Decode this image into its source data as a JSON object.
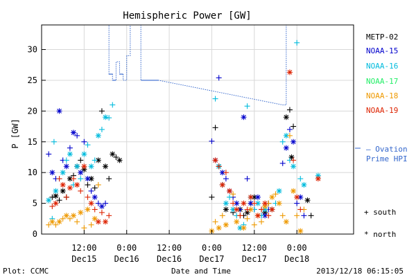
{
  "chart_data": {
    "type": "scatter",
    "title": "Hemispheric Power [GW]",
    "ylabel": "P [GW]",
    "xlabel": "Date and Time",
    "ylim": [
      0,
      34
    ],
    "xlim": [
      0,
      88
    ],
    "yticks": [
      0,
      5,
      10,
      15,
      20,
      25,
      30
    ],
    "xticks": [
      {
        "x": 12,
        "label": "12:00",
        "date": "Dec15"
      },
      {
        "x": 24,
        "label": "0:00",
        "date": "Dec16"
      },
      {
        "x": 36,
        "label": "12:00",
        "date": "Dec16"
      },
      {
        "x": 48,
        "label": "0:00",
        "date": "Dec17"
      },
      {
        "x": 60,
        "label": "12:00",
        "date": "Dec17"
      },
      {
        "x": 72,
        "label": "0:00",
        "date": "Dec18"
      }
    ],
    "grid": true,
    "series": [
      {
        "name": "METP-02",
        "color": "#000000",
        "points": [
          [
            3,
            6,
            "s"
          ],
          [
            4,
            6.2,
            "n"
          ],
          [
            5,
            5.5,
            "s"
          ],
          [
            6,
            7,
            "n"
          ],
          [
            7,
            6,
            "s"
          ],
          [
            8,
            9,
            "n"
          ],
          [
            9,
            9.5,
            "s"
          ],
          [
            10,
            11,
            "n"
          ],
          [
            11,
            12,
            "s"
          ],
          [
            12,
            10.5,
            "n"
          ],
          [
            13,
            8,
            "s"
          ],
          [
            14,
            9,
            "n"
          ],
          [
            15,
            7.5,
            "s"
          ],
          [
            16,
            12,
            "n"
          ],
          [
            17,
            20,
            "s"
          ],
          [
            18,
            11,
            "n"
          ],
          [
            19,
            9,
            "s"
          ],
          [
            20,
            13,
            "n"
          ],
          [
            21,
            12.5,
            "s"
          ],
          [
            22,
            12,
            "n"
          ],
          [
            48,
            6,
            "s"
          ],
          [
            49,
            17.3,
            "s"
          ],
          [
            50,
            11,
            "n"
          ],
          [
            51,
            8,
            "s"
          ],
          [
            52,
            4,
            "n"
          ],
          [
            54,
            3.5,
            "s"
          ],
          [
            56,
            4,
            "n"
          ],
          [
            57,
            3,
            "s"
          ],
          [
            58,
            3.5,
            "n"
          ],
          [
            59,
            5,
            "s"
          ],
          [
            60,
            6,
            "n"
          ],
          [
            62,
            4,
            "s"
          ],
          [
            63,
            3.5,
            "n"
          ],
          [
            64,
            5,
            "s"
          ],
          [
            65,
            4,
            "n"
          ],
          [
            69,
            19,
            "n"
          ],
          [
            70,
            20.2,
            "s"
          ],
          [
            70.5,
            12.5,
            "n"
          ],
          [
            71,
            17.5,
            "s"
          ],
          [
            75,
            5.5,
            "n"
          ],
          [
            76,
            3,
            "s"
          ]
        ]
      },
      {
        "name": "NOAA-15",
        "color": "#0000cc",
        "points": [
          [
            2,
            13,
            "s"
          ],
          [
            3,
            10,
            "n"
          ],
          [
            4,
            9,
            "s"
          ],
          [
            5,
            20,
            "n"
          ],
          [
            6,
            12,
            "s"
          ],
          [
            7,
            11,
            "n"
          ],
          [
            8,
            14,
            "s"
          ],
          [
            9,
            16.5,
            "n"
          ],
          [
            10,
            16,
            "s"
          ],
          [
            11,
            10,
            "n"
          ],
          [
            12,
            15,
            "s"
          ],
          [
            13,
            9,
            "n"
          ],
          [
            14,
            7,
            "s"
          ],
          [
            15,
            6,
            "n"
          ],
          [
            16,
            5,
            "s"
          ],
          [
            17,
            4.5,
            "n"
          ],
          [
            18,
            5,
            "s"
          ],
          [
            48,
            15.1,
            "s"
          ],
          [
            49,
            12,
            "n"
          ],
          [
            50,
            25.4,
            "s"
          ],
          [
            51,
            10,
            "n"
          ],
          [
            52,
            9,
            "s"
          ],
          [
            53,
            7,
            "n"
          ],
          [
            54,
            6,
            "s"
          ],
          [
            55,
            5,
            "n"
          ],
          [
            56,
            4,
            "s"
          ],
          [
            57,
            19,
            "n"
          ],
          [
            58,
            9,
            "s"
          ],
          [
            59,
            5,
            "n"
          ],
          [
            60,
            4,
            "s"
          ],
          [
            61,
            6,
            "n"
          ],
          [
            62,
            3,
            "s"
          ],
          [
            63,
            3,
            "n"
          ],
          [
            64,
            4,
            "s"
          ],
          [
            68,
            11.5,
            "s"
          ],
          [
            69,
            14,
            "n"
          ],
          [
            70,
            17,
            "s"
          ],
          [
            71,
            15,
            "n"
          ],
          [
            72,
            5,
            "s"
          ],
          [
            73,
            6,
            "n"
          ],
          [
            74,
            3,
            "s"
          ]
        ]
      },
      {
        "name": "NOAA-16",
        "color": "#00bbdd",
        "points": [
          [
            2,
            5.5,
            "n"
          ],
          [
            3,
            2.5,
            "s"
          ],
          [
            3.5,
            15,
            "s"
          ],
          [
            4,
            7,
            "n"
          ],
          [
            5,
            9,
            "s"
          ],
          [
            6,
            10,
            "n"
          ],
          [
            7,
            12,
            "s"
          ],
          [
            8,
            13,
            "n"
          ],
          [
            9,
            8,
            "s"
          ],
          [
            10,
            11,
            "n"
          ],
          [
            11,
            9,
            "s"
          ],
          [
            12,
            13,
            "n"
          ],
          [
            13,
            14.5,
            "s"
          ],
          [
            14,
            11,
            "n"
          ],
          [
            15,
            12,
            "s"
          ],
          [
            16,
            16,
            "n"
          ],
          [
            17,
            17,
            "s"
          ],
          [
            18,
            19,
            "n"
          ],
          [
            19,
            18.9,
            "s"
          ],
          [
            20,
            21,
            "s"
          ],
          [
            49,
            22,
            "s"
          ],
          [
            50,
            11,
            "n"
          ],
          [
            51,
            8,
            "s"
          ],
          [
            52,
            5,
            "n"
          ],
          [
            53,
            6,
            "s"
          ],
          [
            54,
            4,
            "n"
          ],
          [
            55,
            3,
            "s"
          ],
          [
            56,
            1,
            "n"
          ],
          [
            57,
            1.5,
            "s"
          ],
          [
            58,
            20.8,
            "s"
          ],
          [
            59,
            6,
            "n"
          ],
          [
            60,
            4,
            "s"
          ],
          [
            61,
            5,
            "n"
          ],
          [
            62,
            3,
            "s"
          ],
          [
            63,
            4,
            "n"
          ],
          [
            66,
            5,
            "s"
          ],
          [
            67,
            7,
            "n"
          ],
          [
            68,
            15,
            "s"
          ],
          [
            69,
            16,
            "n"
          ],
          [
            70,
            12,
            "s"
          ],
          [
            71,
            11,
            "n"
          ],
          [
            72,
            31.1,
            "s"
          ],
          [
            73,
            9,
            "s"
          ],
          [
            74,
            8,
            "n"
          ],
          [
            78,
            9.5,
            "n"
          ]
        ]
      },
      {
        "name": "NOAA-17",
        "color": "#22ee66",
        "points": []
      },
      {
        "name": "NOAA-18",
        "color": "#ee9900",
        "points": [
          [
            2,
            1.5,
            "s"
          ],
          [
            3,
            2,
            "n"
          ],
          [
            4,
            1.5,
            "s"
          ],
          [
            5,
            2,
            "n"
          ],
          [
            6,
            2.5,
            "s"
          ],
          [
            7,
            3,
            "n"
          ],
          [
            8,
            2.5,
            "s"
          ],
          [
            9,
            3,
            "n"
          ],
          [
            10,
            2,
            "s"
          ],
          [
            11,
            3.5,
            "n"
          ],
          [
            12,
            1,
            "s"
          ],
          [
            13,
            4,
            "n"
          ],
          [
            14,
            1.5,
            "s"
          ],
          [
            15,
            2.5,
            "n"
          ],
          [
            16,
            8,
            "s"
          ],
          [
            48,
            0.5,
            "n"
          ],
          [
            49,
            2,
            "s"
          ],
          [
            50,
            1,
            "n"
          ],
          [
            51,
            3,
            "s"
          ],
          [
            52,
            1.5,
            "n"
          ],
          [
            54,
            6.5,
            "s"
          ],
          [
            55,
            2,
            "n"
          ],
          [
            56,
            3,
            "s"
          ],
          [
            57,
            1,
            "n"
          ],
          [
            58,
            2.5,
            "s"
          ],
          [
            59,
            4,
            "n"
          ],
          [
            60,
            1.5,
            "s"
          ],
          [
            61,
            3,
            "n"
          ],
          [
            62,
            2,
            "s"
          ],
          [
            63,
            4.5,
            "n"
          ],
          [
            64,
            5,
            "s"
          ],
          [
            65,
            6,
            "n"
          ],
          [
            66,
            6.5,
            "s"
          ],
          [
            67,
            5,
            "n"
          ],
          [
            68,
            3,
            "s"
          ],
          [
            69,
            2,
            "n"
          ],
          [
            70,
            16,
            "s"
          ],
          [
            71,
            7,
            "n"
          ],
          [
            72,
            3,
            "s"
          ],
          [
            73,
            0.5,
            "n"
          ],
          [
            74,
            4,
            "s"
          ]
        ]
      },
      {
        "name": "NOAA-19",
        "color": "#dd2200",
        "points": [
          [
            3,
            4.5,
            "s"
          ],
          [
            4,
            5,
            "n"
          ],
          [
            5,
            9,
            "s"
          ],
          [
            6,
            8,
            "n"
          ],
          [
            7,
            6,
            "s"
          ],
          [
            8,
            7.5,
            "n"
          ],
          [
            9,
            9,
            "s"
          ],
          [
            10,
            8,
            "n"
          ],
          [
            11,
            7,
            "s"
          ],
          [
            12,
            11,
            "n"
          ],
          [
            13,
            6,
            "s"
          ],
          [
            14,
            5,
            "n"
          ],
          [
            15,
            4,
            "s"
          ],
          [
            16,
            2,
            "n"
          ],
          [
            17,
            3.5,
            "s"
          ],
          [
            18,
            2,
            "n"
          ],
          [
            19,
            3,
            "s"
          ],
          [
            49,
            12,
            "n"
          ],
          [
            50,
            11,
            "s"
          ],
          [
            51,
            8,
            "n"
          ],
          [
            52,
            10,
            "s"
          ],
          [
            53,
            7,
            "n"
          ],
          [
            54,
            5,
            "s"
          ],
          [
            55,
            4,
            "n"
          ],
          [
            56,
            3,
            "s"
          ],
          [
            57,
            5,
            "n"
          ],
          [
            58,
            4,
            "s"
          ],
          [
            59,
            6,
            "n"
          ],
          [
            60,
            5,
            "s"
          ],
          [
            61,
            3,
            "n"
          ],
          [
            62,
            4,
            "s"
          ],
          [
            63,
            5,
            "n"
          ],
          [
            64,
            3,
            "s"
          ],
          [
            65,
            4,
            "n"
          ],
          [
            70,
            26.3,
            "n"
          ],
          [
            71,
            12,
            "s"
          ],
          [
            72,
            6,
            "n"
          ],
          [
            73,
            4,
            "s"
          ],
          [
            78,
            9,
            "n"
          ]
        ]
      }
    ],
    "ovation": {
      "name": "Ovation Prime HPI",
      "color": "#3366cc",
      "steps": [
        [
          18,
          34
        ],
        [
          19,
          26
        ],
        [
          20,
          25
        ],
        [
          21,
          28
        ],
        [
          22,
          26
        ],
        [
          23,
          25
        ],
        [
          24,
          29
        ],
        [
          25,
          34
        ],
        [
          28,
          25
        ],
        [
          33,
          25
        ],
        [
          68,
          21
        ],
        [
          69,
          34
        ]
      ]
    }
  },
  "legend": {
    "entries": [
      "METP-02",
      "NOAA-15",
      "NOAA-16",
      "NOAA-17",
      "NOAA-18",
      "NOAA-19"
    ],
    "ovation_line1": "— Ovation",
    "ovation_line2": "Prime HPI",
    "south_label": "+ south",
    "north_label": "* north"
  },
  "footer": {
    "left": "Plot: CCMC",
    "center": "Date and Time",
    "right": "2013/12/18 06:15:05"
  }
}
